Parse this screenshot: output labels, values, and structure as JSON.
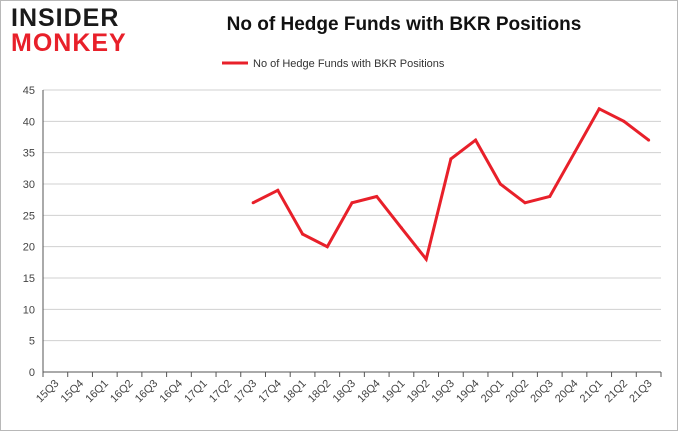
{
  "logo": {
    "line1": "INSIDER",
    "line2": "MONKEY"
  },
  "colors": {
    "series": "#e8202a",
    "grid": "#d0d0d0",
    "axis": "#555555",
    "brand_red": "#e8202a"
  },
  "chart_data": {
    "type": "line",
    "title": "No of Hedge Funds with BKR Positions",
    "xlabel": "",
    "ylabel": "",
    "ylim": [
      0,
      45
    ],
    "yticks": [
      0,
      5,
      10,
      15,
      20,
      25,
      30,
      35,
      40,
      45
    ],
    "grid": true,
    "legend_position": "top-center",
    "categories": [
      "15Q3",
      "15Q4",
      "16Q1",
      "16Q2",
      "16Q3",
      "16Q4",
      "17Q1",
      "17Q2",
      "17Q3",
      "17Q4",
      "18Q1",
      "18Q2",
      "18Q3",
      "18Q4",
      "19Q1",
      "19Q2",
      "19Q3",
      "19Q4",
      "20Q1",
      "20Q2",
      "20Q3",
      "20Q4",
      "21Q1",
      "21Q2",
      "21Q3"
    ],
    "series": [
      {
        "name": "No of Hedge Funds with BKR Positions",
        "values": [
          null,
          null,
          null,
          null,
          null,
          null,
          null,
          null,
          27,
          29,
          22,
          20,
          27,
          28,
          23,
          18,
          34,
          37,
          30,
          27,
          28,
          35,
          42,
          40,
          37
        ]
      }
    ]
  }
}
